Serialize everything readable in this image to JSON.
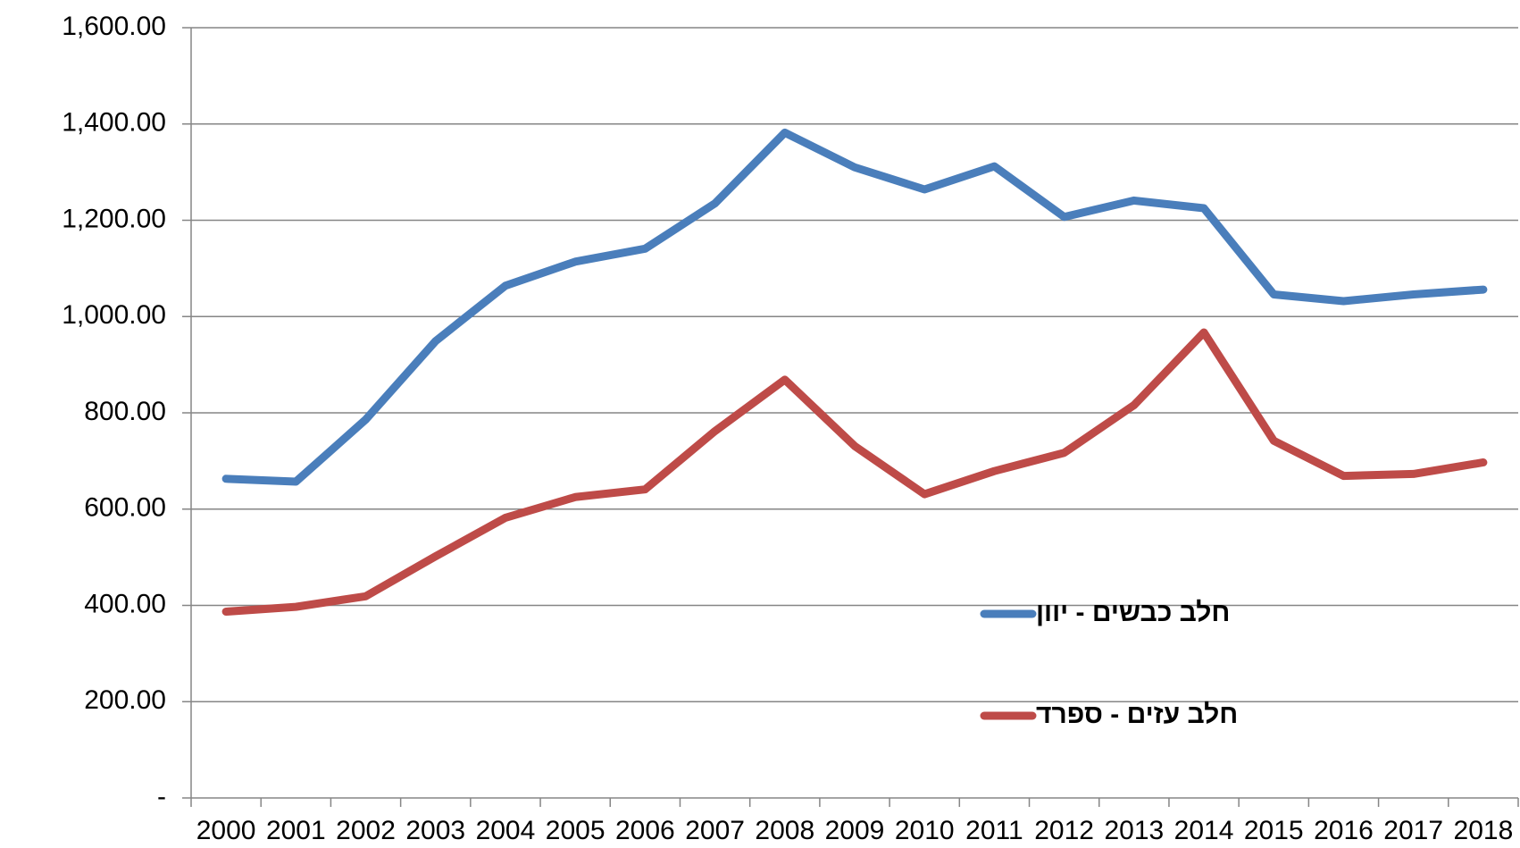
{
  "chart_data": {
    "type": "line",
    "categories": [
      "2000",
      "2001",
      "2002",
      "2003",
      "2004",
      "2005",
      "2006",
      "2007",
      "2008",
      "2009",
      "2010",
      "2011",
      "2012",
      "2013",
      "2014",
      "2015",
      "2016",
      "2017",
      "2018"
    ],
    "series": [
      {
        "name": "חלב כבשים - יוון",
        "color": "#4a7ebb",
        "values": [
          663,
          657,
          786,
          949,
          1064,
          1114,
          1141,
          1235,
          1382,
          1310,
          1264,
          1312,
          1207,
          1241,
          1225,
          1046,
          1032,
          1046,
          1056
        ]
      },
      {
        "name": "חלב עזים - ספרד",
        "color": "#be4b48",
        "values": [
          387,
          397,
          419,
          502,
          582,
          625,
          641,
          762,
          869,
          731,
          631,
          679,
          717,
          816,
          967,
          742,
          669,
          673,
          697
        ]
      }
    ],
    "ylim": [
      0,
      1600
    ],
    "yticks": [
      {
        "value": 0,
        "label": "-"
      },
      {
        "value": 200,
        "label": "200.00"
      },
      {
        "value": 400,
        "label": "400.00"
      },
      {
        "value": 600,
        "label": "600.00"
      },
      {
        "value": 800,
        "label": "800.00"
      },
      {
        "value": 1000,
        "label": "1,000.00"
      },
      {
        "value": 1200,
        "label": "1,200.00"
      },
      {
        "value": 1400,
        "label": "1,400.00"
      },
      {
        "value": 1600,
        "label": "1,600.00"
      }
    ],
    "grid": true
  }
}
